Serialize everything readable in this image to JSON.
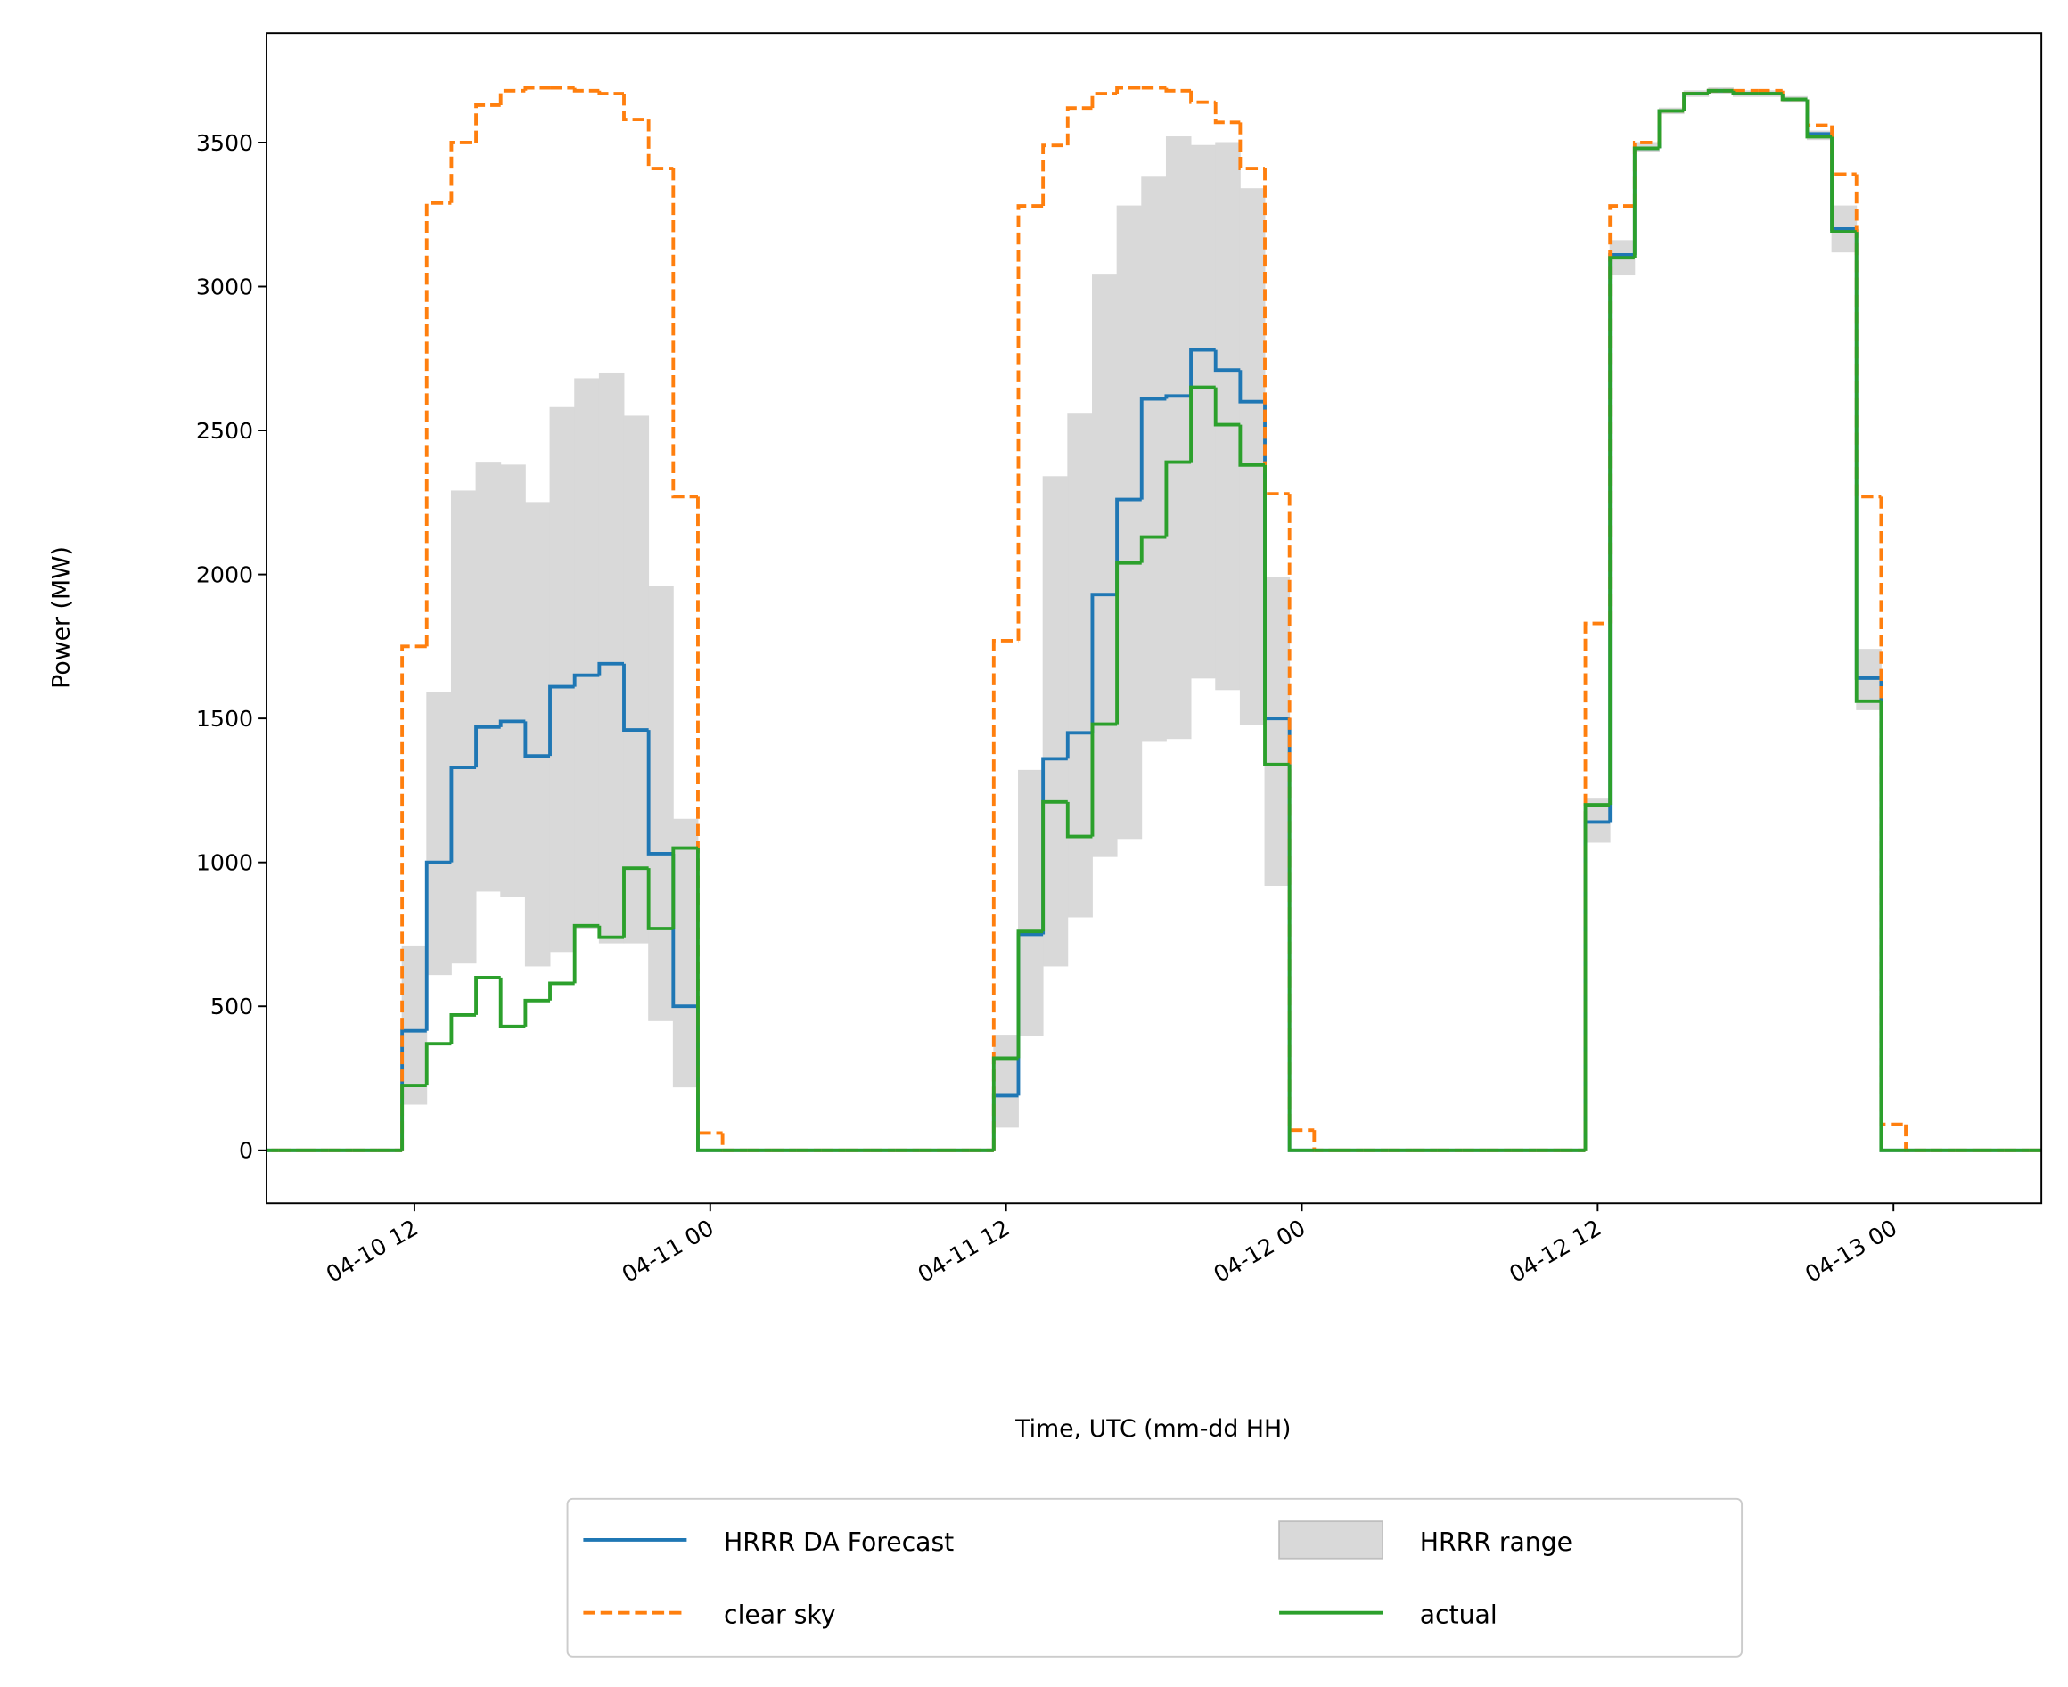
{
  "chart_data": {
    "type": "step",
    "xlabel": "Time, UTC (mm-dd HH)",
    "ylabel": "Power (MW)",
    "x": [
      "04-10 06",
      "04-10 07",
      "04-10 08",
      "04-10 09",
      "04-10 10",
      "04-10 11",
      "04-10 12",
      "04-10 13",
      "04-10 14",
      "04-10 15",
      "04-10 16",
      "04-10 17",
      "04-10 18",
      "04-10 19",
      "04-10 20",
      "04-10 21",
      "04-10 22",
      "04-10 23",
      "04-11 00",
      "04-11 01",
      "04-11 02",
      "04-11 03",
      "04-11 04",
      "04-11 05",
      "04-11 06",
      "04-11 07",
      "04-11 08",
      "04-11 09",
      "04-11 10",
      "04-11 11",
      "04-11 12",
      "04-11 13",
      "04-11 14",
      "04-11 15",
      "04-11 16",
      "04-11 17",
      "04-11 18",
      "04-11 19",
      "04-11 20",
      "04-11 21",
      "04-11 22",
      "04-11 23",
      "04-12 00",
      "04-12 01",
      "04-12 02",
      "04-12 03",
      "04-12 04",
      "04-12 05",
      "04-12 06",
      "04-12 07",
      "04-12 08",
      "04-12 09",
      "04-12 10",
      "04-12 11",
      "04-12 12",
      "04-12 13",
      "04-12 14",
      "04-12 15",
      "04-12 16",
      "04-12 17",
      "04-12 18",
      "04-12 19",
      "04-12 20",
      "04-12 21",
      "04-12 22",
      "04-12 23",
      "04-13 00",
      "04-13 01",
      "04-13 02",
      "04-13 03",
      "04-13 04",
      "04-13 05",
      "04-13 06"
    ],
    "xlim": [
      "04-10 06",
      "04-13 06"
    ],
    "xticks": [
      "04-10 12",
      "04-11 00",
      "04-11 12",
      "04-12 00",
      "04-12 12",
      "04-13 00"
    ],
    "ylim": [
      -184,
      3880
    ],
    "yticks": [
      0,
      500,
      1000,
      1500,
      2000,
      2500,
      3000,
      3500
    ],
    "legend": "below",
    "legend_columns": 2,
    "series": [
      {
        "name": "HRRR DA Forecast",
        "style": "solid",
        "color": "#1f77b4",
        "values": [
          0,
          0,
          0,
          0,
          0,
          0,
          415,
          1000,
          1330,
          1470,
          1490,
          1370,
          1610,
          1650,
          1690,
          1460,
          1030,
          500,
          0,
          0,
          0,
          0,
          0,
          0,
          0,
          0,
          0,
          0,
          0,
          0,
          190,
          750,
          1360,
          1450,
          1930,
          2260,
          2610,
          2620,
          2780,
          2710,
          2600,
          1500,
          0,
          0,
          0,
          0,
          0,
          0,
          0,
          0,
          0,
          0,
          0,
          0,
          1140,
          3110,
          3480,
          3610,
          3670,
          3680,
          3670,
          3670,
          3650,
          3530,
          3200,
          1640,
          0,
          0,
          0,
          0,
          0,
          0,
          0
        ]
      },
      {
        "name": "clear sky",
        "style": "dashed",
        "color": "#ff7f0e",
        "values": [
          0,
          0,
          0,
          0,
          0,
          0,
          1750,
          3290,
          3500,
          3630,
          3680,
          3690,
          3690,
          3680,
          3670,
          3580,
          3410,
          2270,
          60,
          0,
          0,
          0,
          0,
          0,
          0,
          0,
          0,
          0,
          0,
          0,
          1770,
          3280,
          3490,
          3620,
          3670,
          3690,
          3690,
          3680,
          3640,
          3570,
          3410,
          2280,
          70,
          0,
          0,
          0,
          0,
          0,
          0,
          0,
          0,
          0,
          0,
          0,
          1830,
          3280,
          3500,
          3610,
          3670,
          3680,
          3680,
          3680,
          3650,
          3560,
          3390,
          2270,
          90,
          0,
          0,
          0,
          0,
          0,
          0
        ]
      },
      {
        "name": "HRRR range",
        "style": "band",
        "color": "#d9d9d9",
        "low": [
          0,
          0,
          0,
          0,
          0,
          0,
          160,
          610,
          650,
          900,
          880,
          640,
          690,
          770,
          720,
          720,
          450,
          220,
          0,
          0,
          0,
          0,
          0,
          0,
          0,
          0,
          0,
          0,
          0,
          0,
          80,
          400,
          640,
          810,
          1020,
          1080,
          1420,
          1430,
          1640,
          1600,
          1480,
          920,
          0,
          0,
          0,
          0,
          0,
          0,
          0,
          0,
          0,
          0,
          0,
          0,
          1070,
          3040,
          3470,
          3600,
          3660,
          3670,
          3660,
          3660,
          3640,
          3510,
          3120,
          1530,
          0,
          0,
          0,
          0,
          0,
          0,
          0
        ],
        "high": [
          0,
          0,
          0,
          0,
          0,
          0,
          710,
          1590,
          2290,
          2390,
          2380,
          2250,
          2580,
          2680,
          2700,
          2550,
          1960,
          1150,
          0,
          0,
          0,
          0,
          0,
          0,
          0,
          0,
          0,
          0,
          0,
          0,
          400,
          1320,
          2340,
          2560,
          3040,
          3280,
          3380,
          3520,
          3490,
          3500,
          3340,
          1990,
          0,
          0,
          0,
          0,
          0,
          0,
          0,
          0,
          0,
          0,
          0,
          0,
          1220,
          3160,
          3500,
          3620,
          3680,
          3690,
          3680,
          3680,
          3660,
          3540,
          3280,
          1740,
          0,
          0,
          0,
          0,
          0,
          0,
          0
        ]
      },
      {
        "name": "actual",
        "style": "solid",
        "color": "#2ca02c",
        "values": [
          0,
          0,
          0,
          0,
          0,
          0,
          225,
          370,
          470,
          600,
          430,
          520,
          580,
          780,
          740,
          980,
          770,
          1050,
          0,
          0,
          0,
          0,
          0,
          0,
          0,
          0,
          0,
          0,
          0,
          0,
          320,
          760,
          1210,
          1090,
          1480,
          2040,
          2130,
          2390,
          2650,
          2520,
          2380,
          1340,
          0,
          0,
          0,
          0,
          0,
          0,
          0,
          0,
          0,
          0,
          0,
          0,
          1200,
          3100,
          3480,
          3610,
          3670,
          3680,
          3670,
          3670,
          3650,
          3520,
          3190,
          1560,
          0,
          0,
          0,
          0,
          0,
          0,
          0
        ]
      }
    ]
  }
}
